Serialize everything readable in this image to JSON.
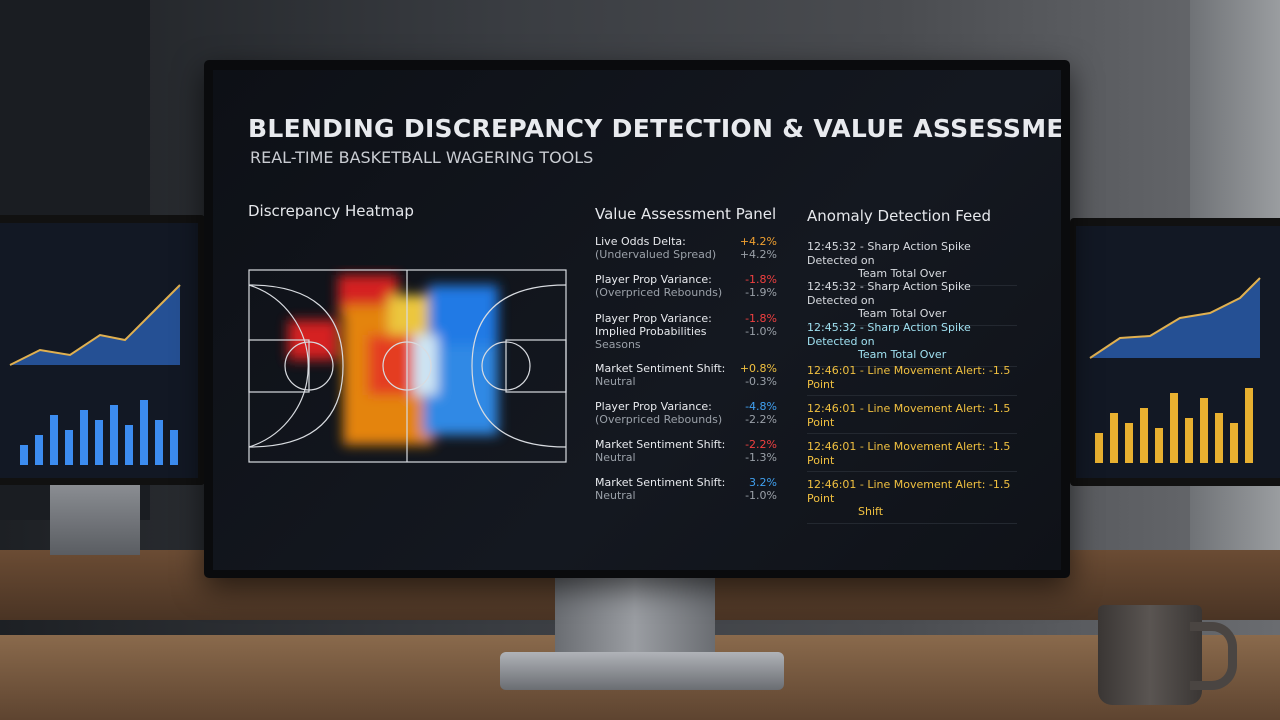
{
  "header": {
    "title": "BLENDING DISCREPANCY DETECTION & VALUE ASSESSMENT",
    "subtitle": "REAL-TIME BASKETBALL WAGERING TOOLS"
  },
  "heatmap": {
    "title": "Discrepancy Heatmap"
  },
  "value_panel": {
    "title": "Value Assessment Panel",
    "rows": [
      {
        "label": "Live Odds Delta:",
        "value": "+4.2%",
        "sublabel": "(Undervalued Spread)",
        "subvalue": "+4.2%",
        "color": "#f0a030"
      },
      {
        "label": "Player Prop Variance:",
        "value": "-1.8%",
        "sublabel": "(Overpriced Rebounds)",
        "subvalue": "-1.9%",
        "color": "#f04040"
      },
      {
        "label": "Player Prop Variance:",
        "value": "-1.8%",
        "sublabel": "Implied Probabilities",
        "subvalue": "-1.0%",
        "extra": "Seasons",
        "color": "#f04040"
      },
      {
        "label": "Market Sentiment Shift:",
        "value": "+0.8%",
        "sublabel": "Neutral",
        "subvalue": "-0.3%",
        "color": "#f0c040"
      },
      {
        "label": "Player Prop Variance:",
        "value": "-4.8%",
        "sublabel": "(Overpriced Rebounds)",
        "subvalue": "-2.2%",
        "color": "#40a0f0"
      },
      {
        "label": "Market Sentiment Shift:",
        "value": "-2.2%",
        "sublabel": "Neutral",
        "subvalue": "-1.3%",
        "color": "#f04040"
      },
      {
        "label": "Market Sentiment Shift:",
        "value": "3.2%",
        "sublabel": "Neutral",
        "subvalue": "-1.0%",
        "color": "#40a0f0"
      }
    ]
  },
  "anomaly_feed": {
    "title": "Anomaly Detection Feed",
    "items": [
      {
        "line1": "12:45:32 - Sharp Action Spike Detected on",
        "line2": "Team Total Over",
        "color": "#d8dbe0"
      },
      {
        "line1": "12:45:32 - Sharp Action Spike Detected on",
        "line2": "Team Total Over",
        "color": "#d8dbe0"
      },
      {
        "line1": "12:45:32 - Sharp Action Spike Detected on",
        "line2": "Team Total Over",
        "color": "#9fe0f0"
      },
      {
        "line1": "12:46:01 - Line Movement Alert: -1.5 Point",
        "color": "#f0c040"
      },
      {
        "line1": "12:46:01 - Line Movement Alert: -1.5 Point",
        "color": "#f0c040"
      },
      {
        "line1": "12:46:01 - Line Movement Alert: -1.5 Point",
        "color": "#f0c040"
      },
      {
        "line1": "12:46:01 - Line Movement Alert: -1.5 Point",
        "line2": "Shift",
        "color": "#f0c040"
      }
    ]
  }
}
